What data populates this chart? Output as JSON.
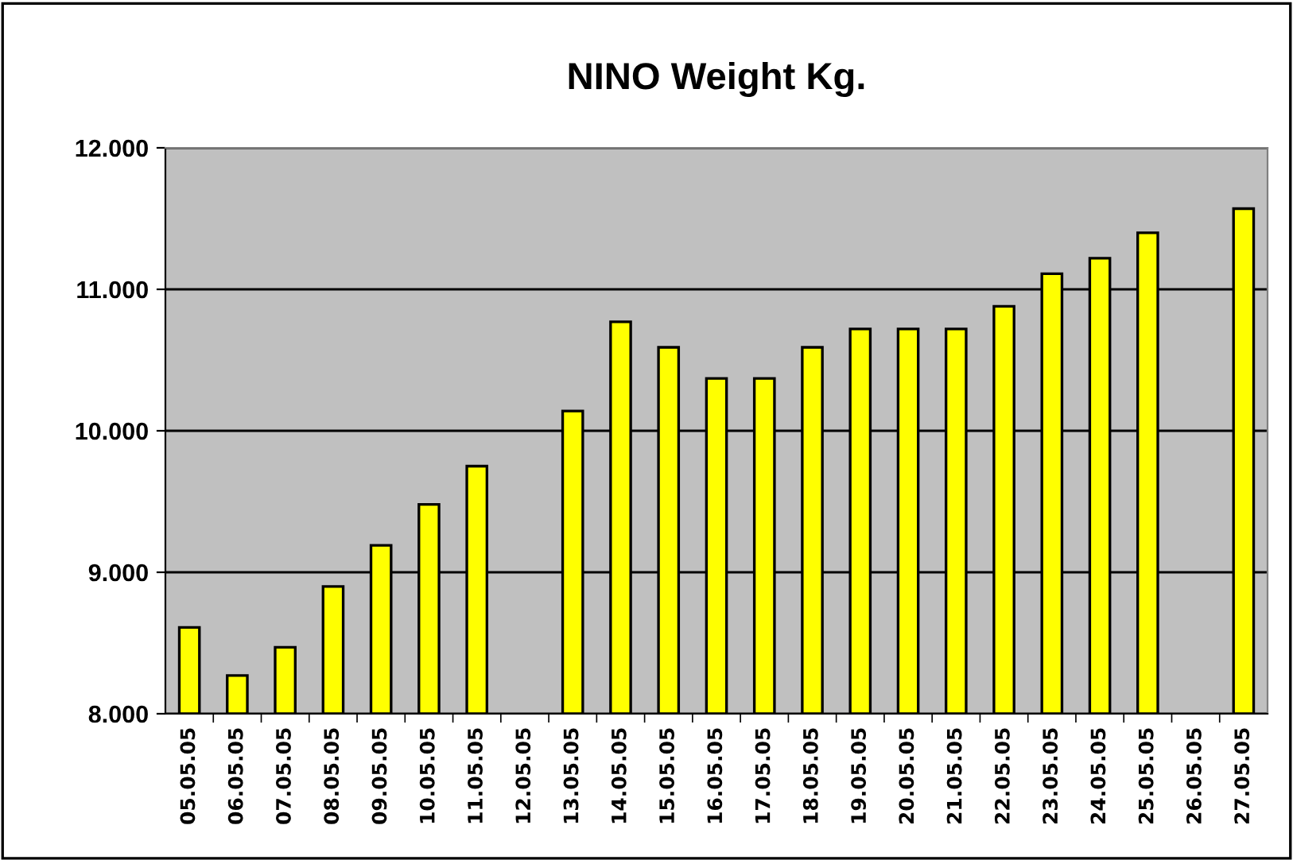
{
  "chart_data": {
    "type": "bar",
    "title": "NINO Weight Kg.",
    "categories": [
      "05.05.05",
      "06.05.05",
      "07.05.05",
      "08.05.05",
      "09.05.05",
      "10.05.05",
      "11.05.05",
      "12.05.05",
      "13.05.05",
      "14.05.05",
      "15.05.05",
      "16.05.05",
      "17.05.05",
      "18.05.05",
      "19.05.05",
      "20.05.05",
      "21.05.05",
      "22.05.05",
      "23.05.05",
      "24.05.05",
      "25.05.05",
      "26.05.05",
      "27.05.05"
    ],
    "values": [
      8.61,
      8.27,
      8.47,
      8.9,
      9.19,
      9.48,
      9.75,
      null,
      10.14,
      10.77,
      10.59,
      10.37,
      10.37,
      10.59,
      10.72,
      10.72,
      10.72,
      10.88,
      11.11,
      11.22,
      11.4,
      null,
      11.57
    ],
    "color": "#ffff00",
    "ylim": [
      8,
      12
    ],
    "yticks": [
      {
        "value": 8,
        "label": "8.000"
      },
      {
        "value": 9,
        "label": "9.000"
      },
      {
        "value": 10,
        "label": "10.000"
      },
      {
        "value": 11,
        "label": "11.000"
      },
      {
        "value": 12,
        "label": "12.000"
      }
    ],
    "grid": "y",
    "legend": false
  }
}
